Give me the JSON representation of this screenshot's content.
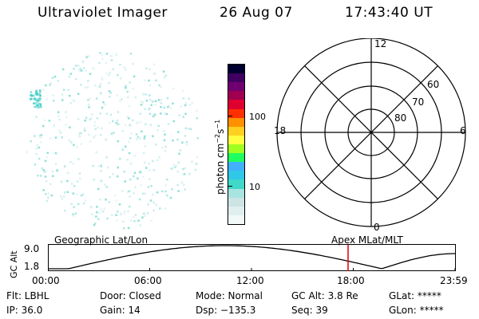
{
  "header": {
    "instrument": "Ultraviolet Imager",
    "date": "26 Aug 07",
    "time": "17:43:40 UT"
  },
  "colorbar": {
    "unit_label": "photon cm",
    "unit_sup1": "−2",
    "unit_mid": "s",
    "unit_sup2": "−1",
    "tick_high": "100",
    "tick_low": "10",
    "colors": [
      "#f2f8f8",
      "#e0eeee",
      "#cce4e4",
      "#a8e4e0",
      "#40d8c8",
      "#30c8e8",
      "#40b0ff",
      "#20ff60",
      "#a0ff20",
      "#ffff40",
      "#ffd020",
      "#ff9000",
      "#ff3000",
      "#e00030",
      "#a00050",
      "#700070",
      "#400060",
      "#000030"
    ]
  },
  "polar_plot": {
    "mlt_labels": {
      "top": "12",
      "left": "18",
      "right": "6",
      "bottom": "0"
    },
    "lat_labels": [
      "60",
      "70",
      "80"
    ]
  },
  "timeline": {
    "y_axis_label": "GC Alt",
    "y_max": "9.0",
    "y_min": "1.8",
    "left_label": "Geographic Lat/Lon",
    "right_label": "Apex MLat/MLT",
    "ticks": [
      "00:00",
      "06:00",
      "12:00",
      "18:00",
      "23:59"
    ],
    "current_time_color": "#dd0000"
  },
  "info": {
    "flt": "Flt: LBHL",
    "ip": "IP: 36.0",
    "door": "Door: Closed",
    "gain": "Gain: 14",
    "mode": "Mode: Normal",
    "dsp": "Dsp: −135.3",
    "gc_alt": "GC Alt: 3.8 Re",
    "seq": "Seq: 39",
    "glat": "GLat: *****",
    "glon": "GLon: *****"
  }
}
